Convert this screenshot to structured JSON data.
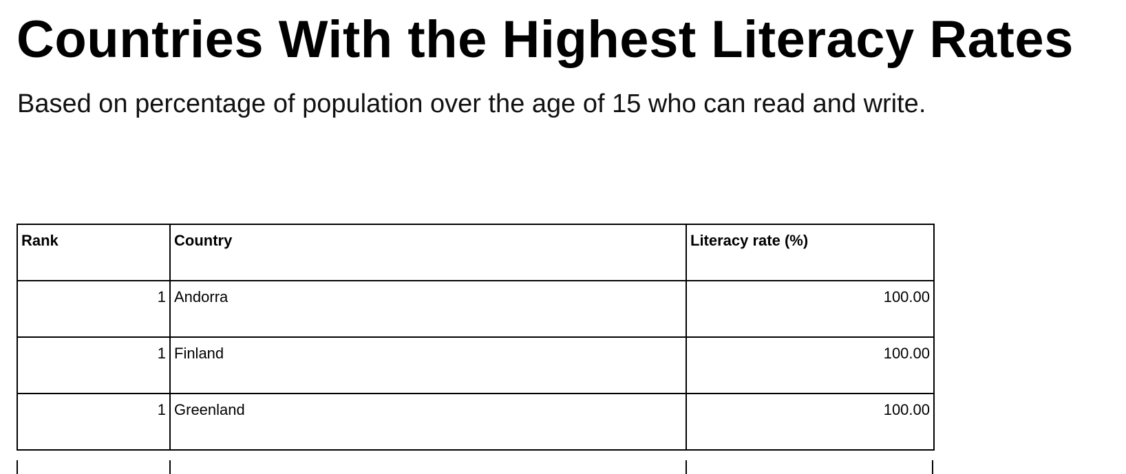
{
  "header": {
    "title": "Countries With the Highest Literacy Rates",
    "subtitle": "Based on percentage of population over the age of 15 who can read and write."
  },
  "table": {
    "columns": [
      "Rank",
      "Country",
      "Literacy rate (%)"
    ],
    "rows": [
      [
        1,
        "Andorra",
        "100.00"
      ],
      [
        1,
        "Finland",
        "100.00"
      ],
      [
        1,
        "Greenland",
        "100.00"
      ]
    ]
  }
}
